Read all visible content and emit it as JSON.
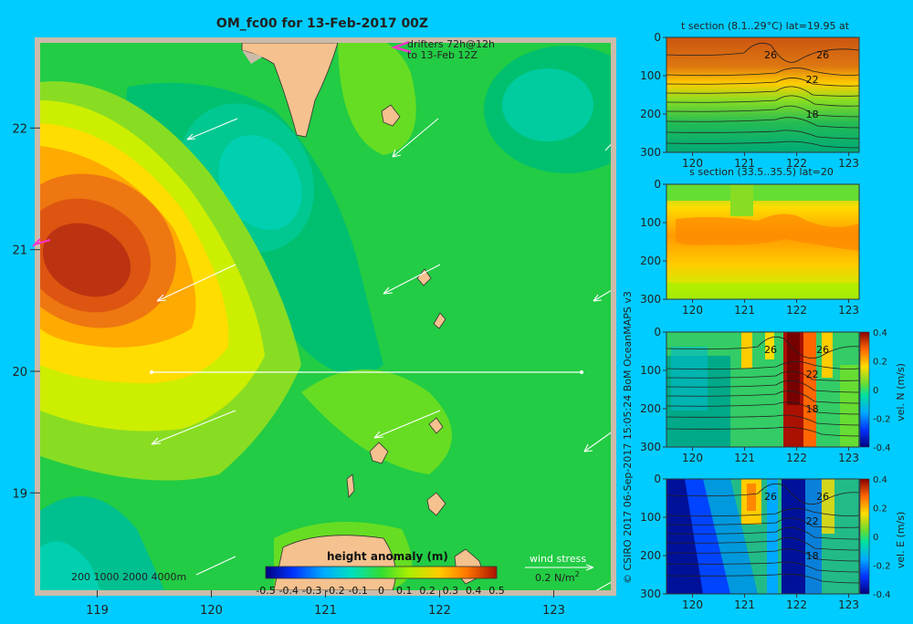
{
  "colors": {
    "background": "#00ccff",
    "frame": "#ccbbaa",
    "land": "#f4c18f",
    "drifter": "#ff33cc"
  },
  "title": "OM_fc00 for 13-Feb-2017 00Z",
  "drifters_label": {
    "line1": "drifters 72h@12h",
    "line2": "to 13-Feb 12Z"
  },
  "depth_contours_label": "200  1000  2000  4000m",
  "wind_stress_label": {
    "title": "wind stress",
    "value": "0.2 N/m",
    "exp": "2"
  },
  "copyright": "© CSIRO 2017   06-Sep-2017 15:05:24 BoM OceanMAPS v3",
  "chart_data": [
    {
      "type": "heatmap",
      "name": "map",
      "title": "OM_fc00 for 13-Feb-2017 00Z",
      "x_ticks": [
        "119",
        "120",
        "121",
        "122",
        "123"
      ],
      "y_ticks": [
        "22",
        "21",
        "20",
        "19"
      ],
      "xlim": [
        118.5,
        123.5
      ],
      "ylim": [
        18.2,
        22.7
      ],
      "colorbar": {
        "title": "height anomaly (m)",
        "tick_labels": [
          "-0.5",
          "-0.4",
          "-0.3",
          "-0.2",
          "-0.1",
          "0",
          "0.1",
          "0.2",
          "0.3",
          "0.4",
          "0.5"
        ],
        "range": [
          -0.5,
          0.5
        ]
      },
      "section_line": {
        "lat": 20,
        "lon": [
          119.5,
          123.05
        ]
      }
    },
    {
      "type": "heatmap",
      "name": "t-section",
      "title": "t section (8.1..29°C) lat=19.95 at",
      "x_ticks": [
        "120",
        "121",
        "122",
        "123"
      ],
      "y_ticks": [
        "0",
        "100",
        "200",
        "300"
      ],
      "xlim": [
        119.5,
        123.2
      ],
      "ylim": [
        0,
        300
      ],
      "contour_labels": [
        "26",
        "26",
        "22",
        "18"
      ]
    },
    {
      "type": "heatmap",
      "name": "s-section",
      "title": "s section (33.5..35.5) lat=20",
      "x_ticks": [
        "120",
        "121",
        "122",
        "123"
      ],
      "y_ticks": [
        "0",
        "100",
        "200",
        "300"
      ],
      "xlim": [
        119.5,
        123.2
      ],
      "ylim": [
        0,
        300
      ]
    },
    {
      "type": "heatmap",
      "name": "vel-n-section",
      "x_ticks": [
        "120",
        "121",
        "122",
        "123"
      ],
      "y_ticks": [
        "0",
        "100",
        "200",
        "300"
      ],
      "xlim": [
        119.5,
        123.2
      ],
      "ylim": [
        0,
        300
      ],
      "contour_labels": [
        "26",
        "26",
        "22",
        "18"
      ],
      "colorbar": {
        "label": "vel. N (m/s)",
        "tick_labels": [
          "0.4",
          "0.2",
          "0",
          "-0.2",
          "-0.4"
        ],
        "range": [
          -0.4,
          0.4
        ]
      }
    },
    {
      "type": "heatmap",
      "name": "vel-e-section",
      "x_ticks": [
        "120",
        "121",
        "122",
        "123"
      ],
      "y_ticks": [
        "0",
        "100",
        "200",
        "300"
      ],
      "xlim": [
        119.5,
        123.2
      ],
      "ylim": [
        0,
        300
      ],
      "contour_labels": [
        "26",
        "26",
        "22",
        "18"
      ],
      "colorbar": {
        "label": "vel. E (m/s)",
        "tick_labels": [
          "0.4",
          "0.2",
          "0",
          "-0.2",
          "-0.4"
        ],
        "range": [
          -0.4,
          0.4
        ]
      }
    }
  ]
}
